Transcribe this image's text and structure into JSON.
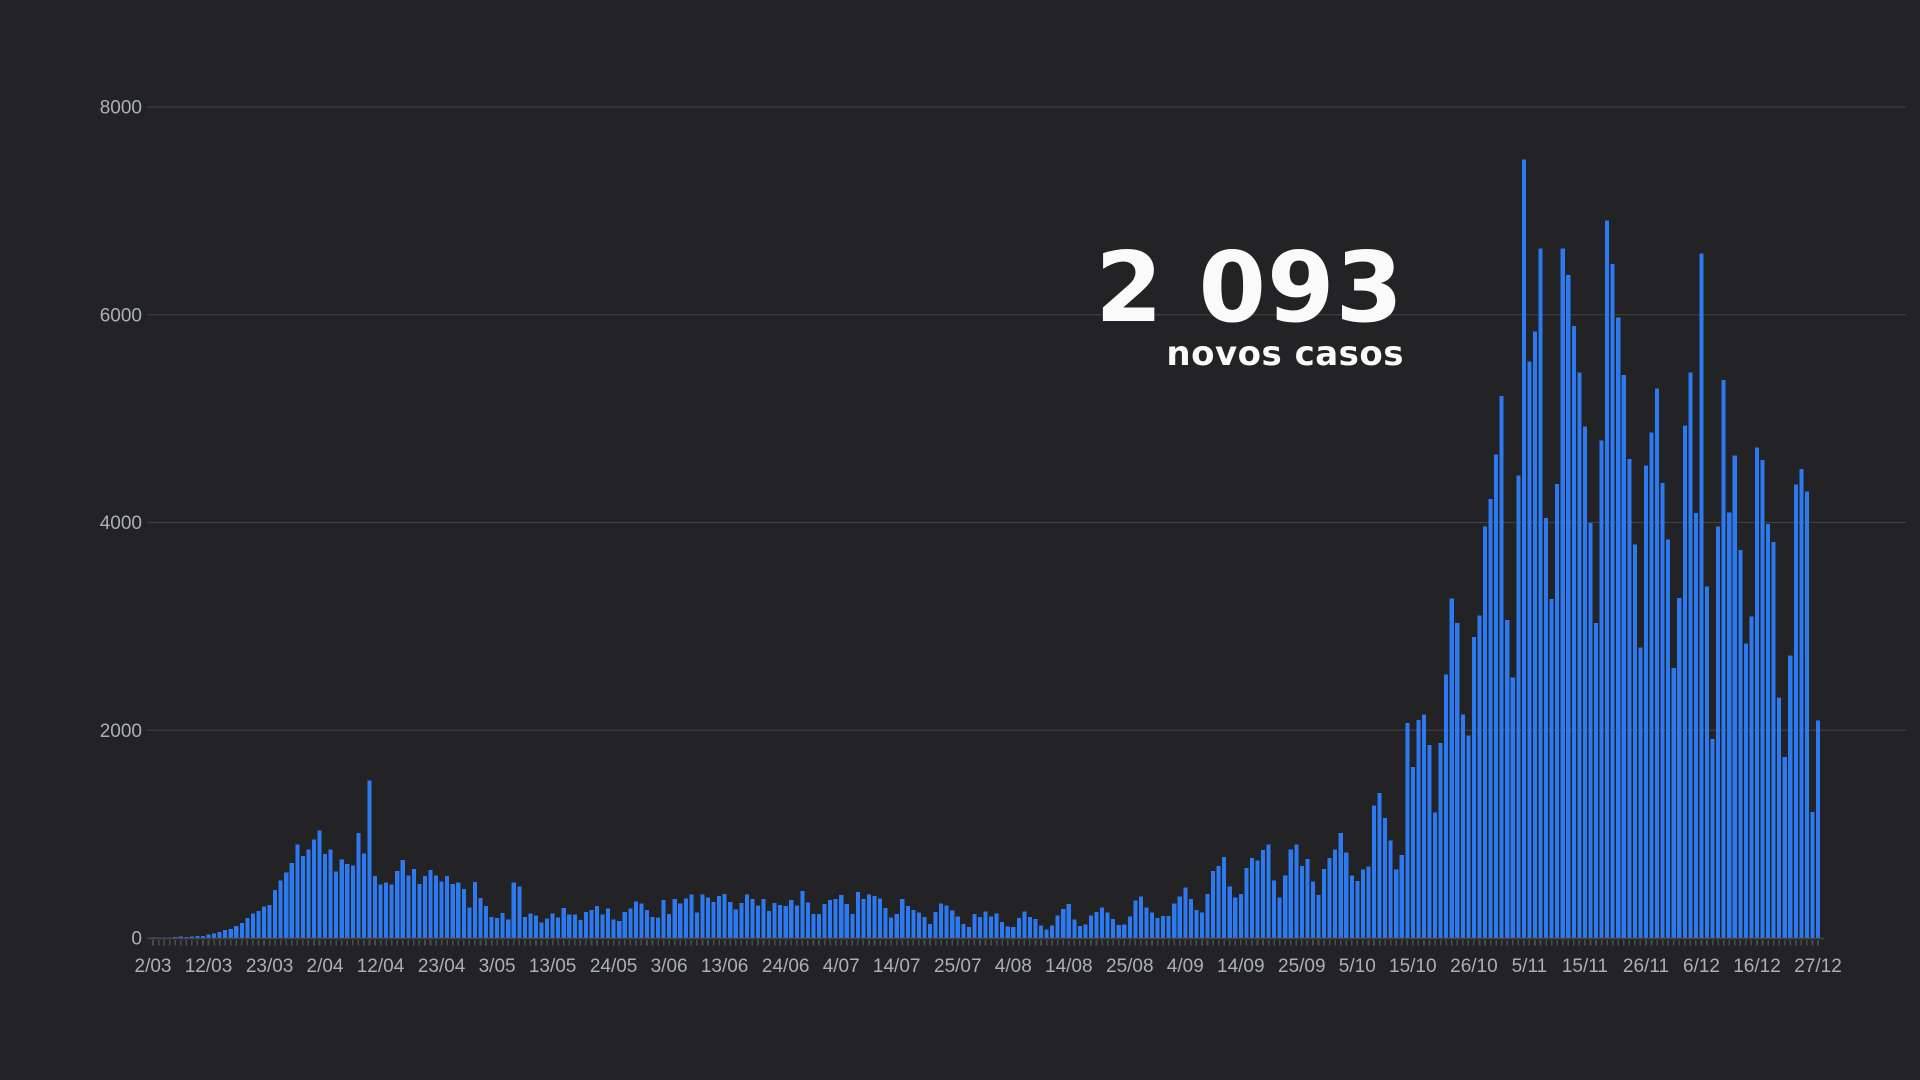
{
  "chart_data": {
    "type": "bar",
    "headline": {
      "value": "2 093",
      "label": "novos casos"
    },
    "xlabel": "",
    "ylabel": "",
    "ylim": [
      0,
      8000
    ],
    "y_ticks": [
      0,
      2000,
      4000,
      6000,
      8000
    ],
    "x_start_date": "2/03",
    "x_end_date": "27/12",
    "x_unit": "day",
    "grid": "horizontal",
    "legend_position": "none",
    "x_ticks": [
      {
        "label": "2/03",
        "day": 0
      },
      {
        "label": "12/03",
        "day": 10
      },
      {
        "label": "23/03",
        "day": 21
      },
      {
        "label": "2/04",
        "day": 31
      },
      {
        "label": "12/04",
        "day": 41
      },
      {
        "label": "23/04",
        "day": 52
      },
      {
        "label": "3/05",
        "day": 62
      },
      {
        "label": "13/05",
        "day": 72
      },
      {
        "label": "24/05",
        "day": 83
      },
      {
        "label": "3/06",
        "day": 93
      },
      {
        "label": "13/06",
        "day": 103
      },
      {
        "label": "24/06",
        "day": 114
      },
      {
        "label": "4/07",
        "day": 124
      },
      {
        "label": "14/07",
        "day": 134
      },
      {
        "label": "25/07",
        "day": 145
      },
      {
        "label": "4/08",
        "day": 155
      },
      {
        "label": "14/08",
        "day": 165
      },
      {
        "label": "25/08",
        "day": 176
      },
      {
        "label": "4/09",
        "day": 186
      },
      {
        "label": "14/09",
        "day": 196
      },
      {
        "label": "25/09",
        "day": 207
      },
      {
        "label": "5/10",
        "day": 217
      },
      {
        "label": "15/10",
        "day": 227
      },
      {
        "label": "26/10",
        "day": 238
      },
      {
        "label": "5/11",
        "day": 248
      },
      {
        "label": "15/11",
        "day": 258
      },
      {
        "label": "26/11",
        "day": 269
      },
      {
        "label": "6/12",
        "day": 279
      },
      {
        "label": "16/12",
        "day": 289
      },
      {
        "label": "27/12",
        "day": 300
      }
    ],
    "values": [
      2,
      2,
      3,
      6,
      9,
      13,
      10,
      14,
      18,
      21,
      34,
      41,
      57,
      76,
      86,
      117,
      143,
      194,
      235,
      260,
      302,
      320,
      460,
      554,
      633,
      724,
      902,
      791,
      852,
      946,
      1035,
      808,
      852,
      638,
      754,
      712,
      699,
      1011,
      815,
      1516,
      598,
      515,
      535,
      514,
      643,
      750,
      603,
      663,
      521,
      595,
      657,
      603,
      544,
      595,
      520,
      532,
      472,
      295,
      540,
      385,
      306,
      203,
      192,
      242,
      178,
      533,
      495,
      203,
      236,
      219,
      148,
      187,
      234,
      198,
      288,
      224,
      226,
      173,
      252,
      271,
      310,
      224,
      285,
      178,
      165,
      251,
      285,
      350,
      331,
      272,
      200,
      195,
      366,
      233,
      377,
      331,
      382,
      421,
      244,
      421,
      389,
      346,
      403,
      424,
      345,
      274,
      336,
      417,
      375,
      313,
      377,
      259,
      336,
      319,
      310,
      367,
      311,
      451,
      342,
      233,
      229,
      328,
      367,
      374,
      413,
      328,
      232,
      443,
      375,
      418,
      403,
      380,
      291,
      198,
      233,
      375,
      310,
      270,
      245,
      204,
      135,
      252,
      331,
      313,
      263,
      209,
      135,
      106,
      231,
      203,
      255,
      207,
      238,
      153,
      112,
      106,
      193,
      255,
      204,
      181,
      121,
      82,
      120,
      219,
      278,
      325,
      178,
      117,
      132,
      218,
      252,
      292,
      244,
      182,
      123,
      131,
      209,
      362,
      401,
      296,
      244,
      192,
      213,
      213,
      331,
      399,
      486,
      374,
      268,
      244,
      425,
      646,
      691,
      780,
      497,
      388,
      425,
      673,
      770,
      746,
      849,
      902,
      552,
      392,
      602,
      854,
      899,
      691,
      760,
      544,
      415,
      662,
      771,
      854,
      1012,
      822,
      604,
      548,
      658,
      687,
      1278,
      1394,
      1153,
      937,
      661,
      798,
      2072,
      1646,
      2101,
      2153,
      1856,
      1208,
      1876,
      2535,
      3270,
      3032,
      2153,
      1949,
      2899,
      3103,
      3960,
      4224,
      4656,
      5220,
      3062,
      2506,
      4452,
      7497,
      5550,
      5839,
      6640,
      4044,
      3263,
      4370,
      6638,
      6383,
      5891,
      5444,
      4923,
      3996,
      3031,
      4788,
      6906,
      6489,
      5974,
      5418,
      4613,
      3788,
      2799,
      4548,
      4868,
      5291,
      4382,
      3834,
      2597,
      3274,
      4935,
      5444,
      4093,
      6590,
      3384,
      1917,
      3962,
      5373,
      4097,
      4646,
      3735,
      2835,
      3093,
      4720,
      4602,
      3988,
      3811,
      2316,
      1741,
      2721,
      4368,
      4515,
      4297,
      1214,
      2093
    ],
    "colors": {
      "background": "#232325",
      "bar": "#2d7af0",
      "grid": "#3e3f41",
      "baseline": "#46474a",
      "day_tick": "#4a4c4e",
      "axis_label": "#aab0b6",
      "headline": "#fafafa"
    }
  }
}
